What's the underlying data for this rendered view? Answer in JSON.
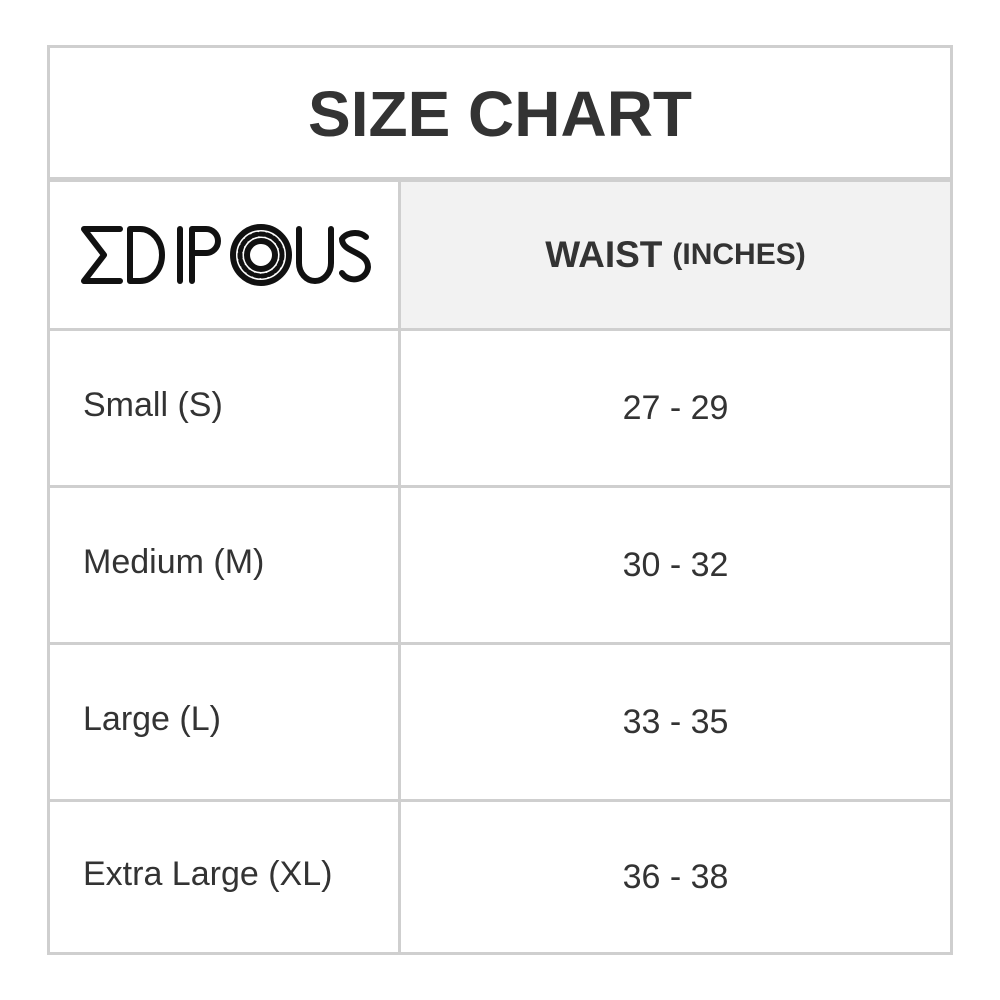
{
  "title": "SIZE CHART",
  "logo": {
    "text": "EDIPOUS"
  },
  "header": {
    "measure": "WAIST",
    "unit": "(INCHES)"
  },
  "rows": [
    {
      "size": "Small (S)",
      "waist": "27 - 29"
    },
    {
      "size": "Medium (M)",
      "waist": "30 - 32"
    },
    {
      "size": "Large (L)",
      "waist": "33 - 35"
    },
    {
      "size": "Extra Large (XL)",
      "waist": "36 - 38"
    }
  ],
  "colors": {
    "border": "#cfcfcf",
    "header_bg": "#f2f2f2",
    "text": "#333333"
  }
}
